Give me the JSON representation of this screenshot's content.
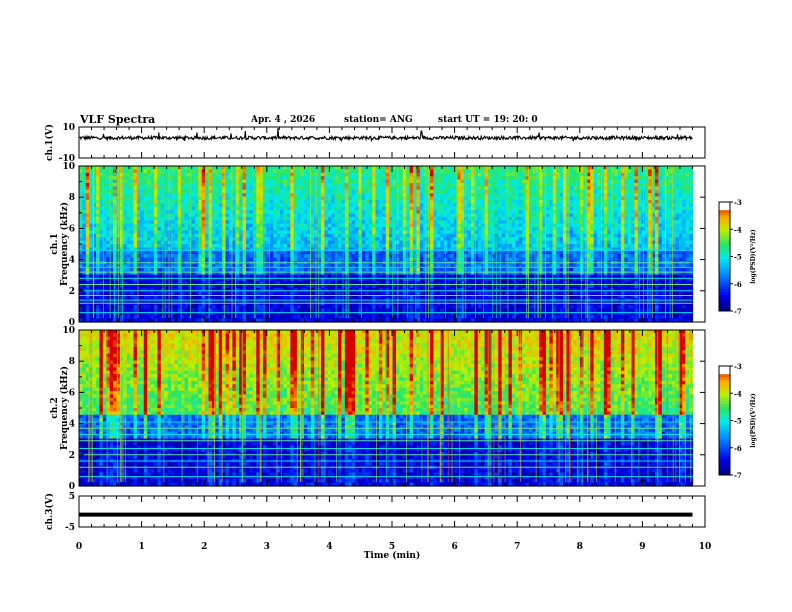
{
  "header": {
    "title": "VLF Spectra",
    "date": "Apr. 4 , 2026",
    "station": "station= ANG",
    "start": "start UT =  19: 20: 0"
  },
  "chart_data": [
    {
      "type": "line",
      "name": "ch1-waveform",
      "ylabel": "ch.1(V)",
      "ylim": [
        -10,
        10
      ],
      "yticks": [
        "10",
        "-10"
      ],
      "x_unit": "min",
      "xlim": [
        0,
        10
      ],
      "description_level": "noisy signal centred near +3 V with occasional spikes"
    },
    {
      "type": "heatmap",
      "name": "ch1-spectrogram",
      "ylabel_line1": "ch.1",
      "ylabel_line2": "Frequency (kHz)",
      "ylim": [
        0,
        10
      ],
      "yticks": [
        "0",
        "2",
        "4",
        "6",
        "8",
        "10"
      ],
      "xlim": [
        0,
        9.8
      ],
      "colorbar": {
        "label": "log(PSD)(V²/Hz)",
        "range": [
          -7,
          -3
        ],
        "ticks": [
          "-3",
          "-4",
          "-5",
          "-6",
          "-7"
        ]
      },
      "horizontal_lines_khz": [
        0.6,
        1.2,
        1.4,
        1.7,
        2.0,
        2.4,
        2.8,
        3.2,
        3.5,
        3.8,
        4.6
      ]
    },
    {
      "type": "heatmap",
      "name": "ch2-spectrogram",
      "ylabel_line1": "ch.2",
      "ylabel_line2": "Frequency (kHz)",
      "ylim": [
        0,
        10
      ],
      "yticks": [
        "0",
        "2",
        "4",
        "6",
        "8",
        "10"
      ],
      "xlim": [
        0,
        9.8
      ],
      "colorbar": {
        "label": "log(PSD)(V²/Hz)",
        "range": [
          -7,
          -3
        ],
        "ticks": [
          "-3",
          "-4",
          "-5",
          "-6",
          "-7"
        ]
      },
      "horizontal_lines_khz": [
        0.6,
        1.2,
        1.6,
        2.0,
        2.4,
        2.9,
        3.3,
        3.7,
        4.1
      ]
    },
    {
      "type": "line",
      "name": "ch3-waveform",
      "ylabel": "ch.3(V)",
      "ylim": [
        -5,
        5
      ],
      "yticks": [
        "5",
        "-5"
      ],
      "xlim": [
        0,
        10
      ],
      "level": -1
    }
  ],
  "xaxis": {
    "label": "Time (min)",
    "ticks": [
      "0",
      "1",
      "2",
      "3",
      "4",
      "5",
      "6",
      "7",
      "8",
      "9",
      "10"
    ]
  }
}
